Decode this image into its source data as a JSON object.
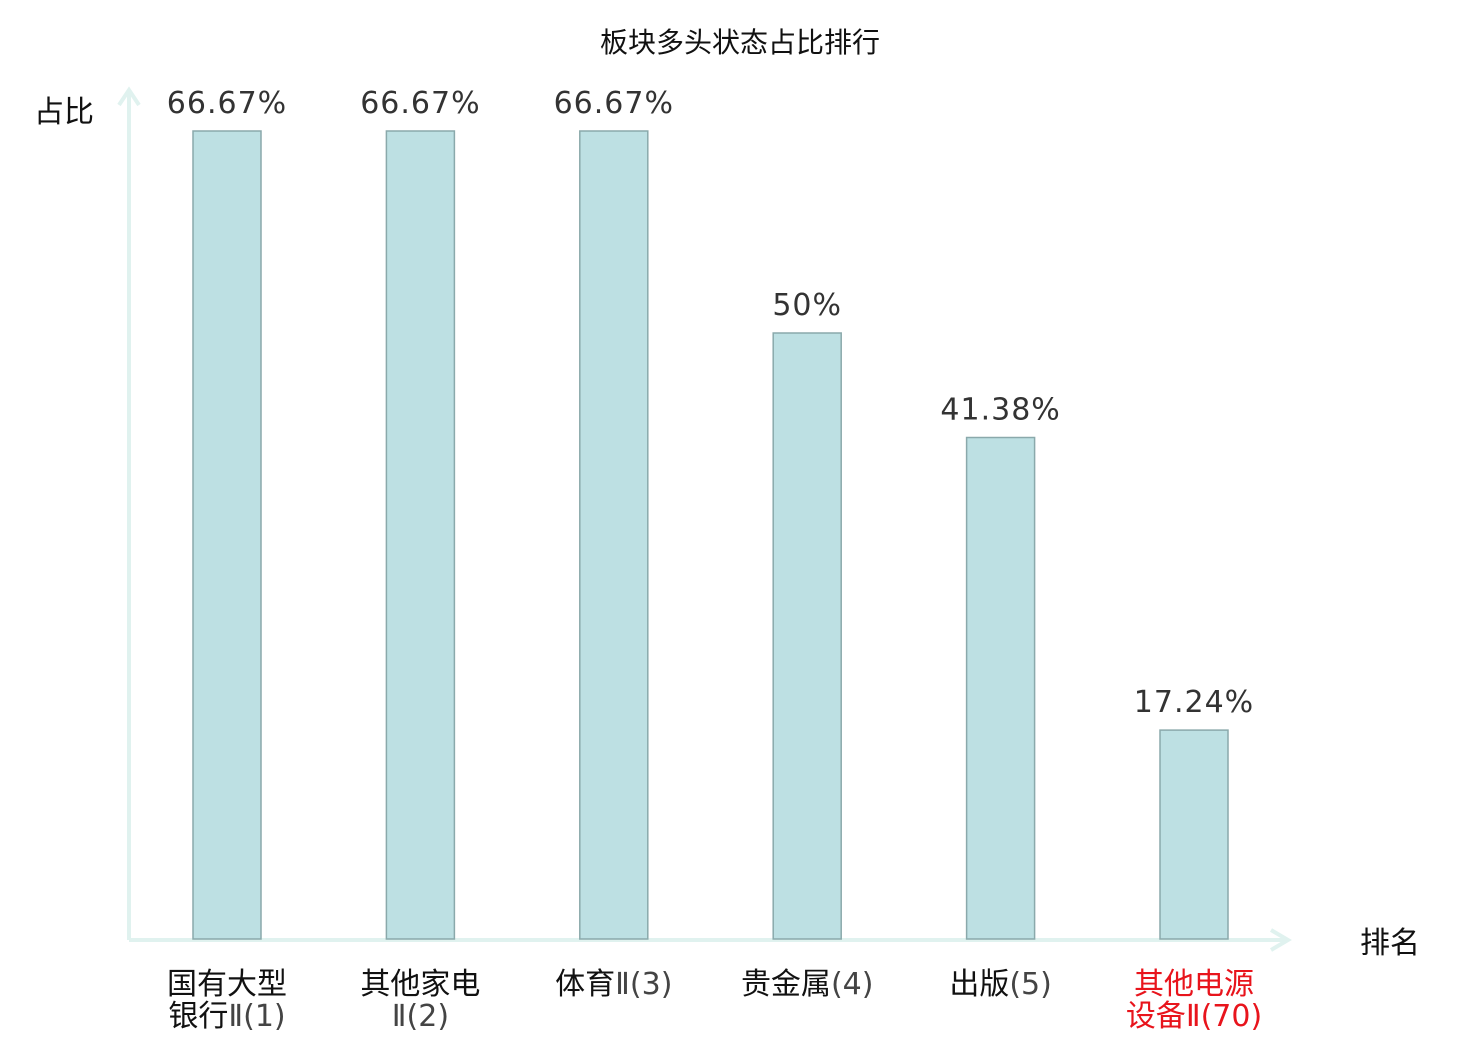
{
  "chart_data": {
    "type": "bar",
    "title": "板块多头状态占比排行",
    "ylabel": "占比",
    "xlabel": "排名",
    "ylim": [
      0,
      70
    ],
    "grid": false,
    "categories": [
      {
        "line1": "国有大型",
        "line2_name": "银行",
        "line2_rank": "Ⅱ(1)",
        "highlight": false
      },
      {
        "line1": "其他家电",
        "line2_name": "",
        "line2_rank": "Ⅱ(2)",
        "highlight": false
      },
      {
        "line1": "",
        "line1_name": "体育",
        "line1_rank": "Ⅱ(3)",
        "line2_name": "",
        "line2_rank": "",
        "highlight": false
      },
      {
        "line1": "",
        "line1_name": "贵金属",
        "line1_rank": "(4)",
        "line2_name": "",
        "line2_rank": "",
        "highlight": false
      },
      {
        "line1": "",
        "line1_name": "出版",
        "line1_rank": "(5)",
        "line2_name": "",
        "line2_rank": "",
        "highlight": false
      },
      {
        "line1": "其他电源",
        "line2_name": "设备",
        "line2_rank": "Ⅱ(70)",
        "highlight": true
      }
    ],
    "values": [
      66.67,
      66.67,
      66.67,
      50,
      41.38,
      17.24
    ],
    "value_labels": [
      "66.67%",
      "66.67%",
      "66.67%",
      "50%",
      "41.38%",
      "17.24%"
    ],
    "colors": {
      "bar_fill": "#bde0e3",
      "bar_stroke": "#8aa9ab",
      "axis": "#e0f2ef",
      "highlight": "#e8141c",
      "text": "#111111",
      "rank_text": "#444444"
    }
  }
}
